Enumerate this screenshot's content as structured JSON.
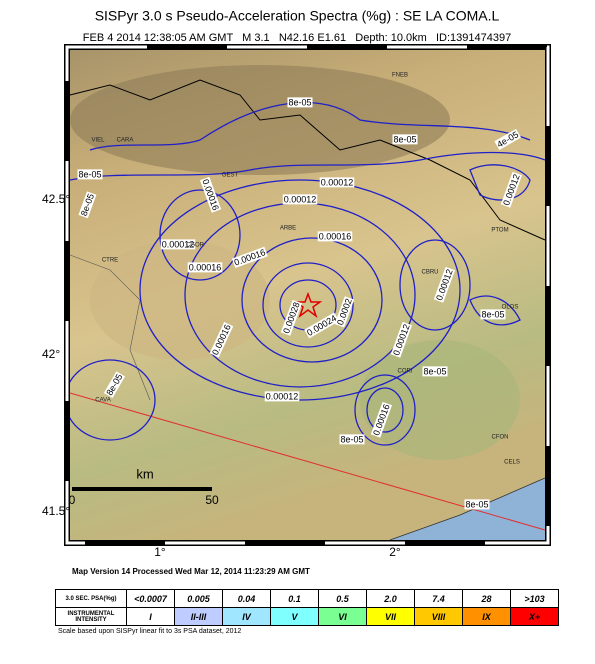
{
  "header": {
    "title": "SISPyr 3.0 s Pseudo-Acceleration Spectra (%g) : SE LA COMA.L",
    "subtitle": "FEB 4 2014 12:38:05 AM GMT   M 3.1   N42.16 E1.61   Depth: 10.0km   ID:1391474397"
  },
  "map": {
    "lat_labels": [
      "42.5°",
      "42°",
      "41.5°"
    ],
    "lon_labels": [
      "1°",
      "2°"
    ],
    "places": [
      "FNEB",
      "VIEL",
      "CARA",
      "GEST",
      "ARBE",
      "CGOR",
      "CTRE",
      "CBRU",
      "OLOS",
      "CORI",
      "CAVA",
      "CFON",
      "CELS",
      "PTOM"
    ],
    "contour_labels": [
      "8e-05",
      "8e-05",
      "4e-05",
      "8e-05",
      "0.00012",
      "0.00012",
      "0.00016",
      "0.00012",
      "0.00016",
      "0.00016",
      "0.00012",
      "8e-05",
      "0.00028",
      "0.00024",
      "0.0002",
      "0.00016",
      "0.00012",
      "8e-05",
      "0.00012",
      "8e-05",
      "8e-05",
      "8e-05",
      "0.00016",
      "0.00012",
      "0.00016",
      "8e-05"
    ],
    "scale": {
      "unit": "km",
      "start": "0",
      "end": "50"
    }
  },
  "footer": {
    "version": "Map Version 14 Processed Wed Mar 12, 2014 11:23:29 AM GMT"
  },
  "legend": {
    "row_headers": [
      "3.0 SEC. PSA(%g)",
      "INSTRUMENTAL INTENSITY"
    ],
    "psa": [
      "<0.0007",
      "0.005",
      "0.04",
      "0.1",
      "0.5",
      "2.0",
      "7.4",
      "28",
      ">103"
    ],
    "intensity": [
      "I",
      "II-III",
      "IV",
      "V",
      "VI",
      "VII",
      "VIII",
      "IX",
      "X+"
    ],
    "colors": [
      "#ffffff",
      "#bfccff",
      "#a0e6ff",
      "#80ffff",
      "#7aff93",
      "#ffff00",
      "#ffc800",
      "#ff9100",
      "#ff0000"
    ],
    "note": "Scale based upon SISPyr linear fit to 3s PSA dataset, 2012"
  }
}
